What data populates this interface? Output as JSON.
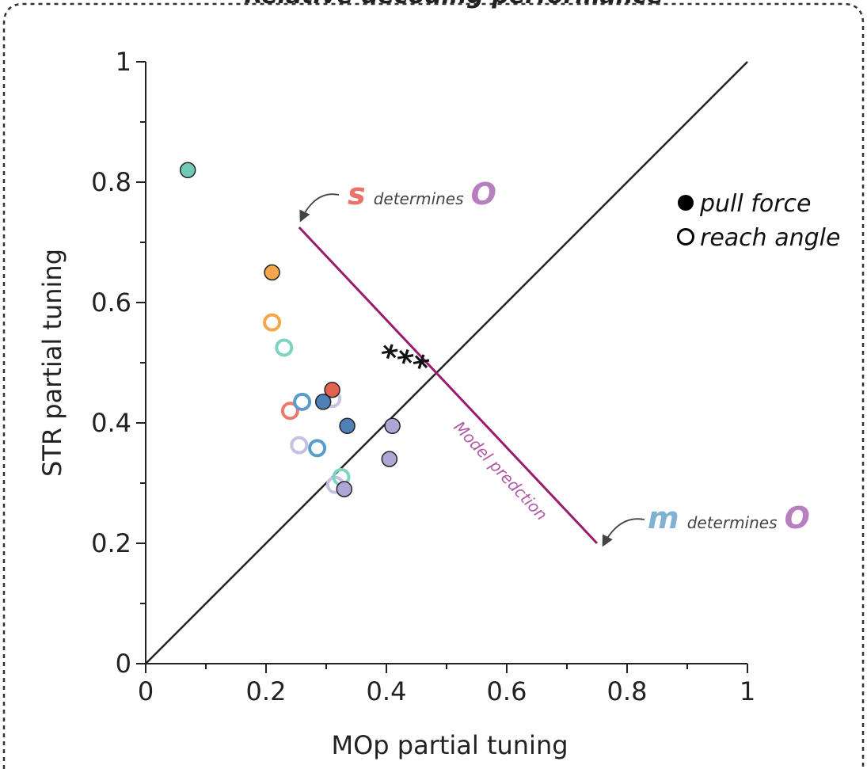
{
  "chart_data": {
    "type": "scatter",
    "title": "Relative decoding performance",
    "xlabel": "MOp partial tuning",
    "ylabel": "STR partial tuning",
    "xlim": [
      0,
      1
    ],
    "ylim": [
      0,
      1
    ],
    "x_ticks": [
      "0",
      "0.2",
      "0.4",
      "0.6",
      "0.8",
      "1"
    ],
    "y_ticks": [
      "0",
      "0.2",
      "0.4",
      "0.6",
      "0.8",
      "1"
    ],
    "x_tick_values": [
      0,
      0.2,
      0.4,
      0.6,
      0.8,
      1
    ],
    "y_tick_values": [
      0,
      0.2,
      0.4,
      0.6,
      0.8,
      1
    ],
    "legend": {
      "placement": "top-right",
      "filled_label": "pull force",
      "open_label": "reach angle"
    },
    "identity_line": {
      "from": [
        0,
        0
      ],
      "to": [
        1,
        1
      ]
    },
    "model_line": {
      "from": [
        0.255,
        0.725
      ],
      "to": [
        0.75,
        0.2
      ],
      "color": "#9b1b6e"
    },
    "model_label": "Model predction",
    "significance": "***",
    "annotations": {
      "top": {
        "letter": "s",
        "text": "determines",
        "target": "O",
        "letter_color": "#e8736a",
        "target_color": "#b77fc0"
      },
      "bottom": {
        "letter": "m",
        "text": "determines",
        "target": "O",
        "letter_color": "#7fb1d3",
        "target_color": "#b77fc0"
      }
    },
    "series": [
      {
        "name": "pull force",
        "filled": true,
        "points": [
          {
            "x": 0.07,
            "y": 0.82,
            "color": "#6fcbb3"
          },
          {
            "x": 0.21,
            "y": 0.65,
            "color": "#f6a64a"
          },
          {
            "x": 0.31,
            "y": 0.455,
            "color": "#e3624f"
          },
          {
            "x": 0.295,
            "y": 0.435,
            "color": "#4f81b8"
          },
          {
            "x": 0.335,
            "y": 0.395,
            "color": "#4f81b8"
          },
          {
            "x": 0.41,
            "y": 0.395,
            "color": "#b0a6d6"
          },
          {
            "x": 0.405,
            "y": 0.34,
            "color": "#b0a6d6"
          },
          {
            "x": 0.33,
            "y": 0.29,
            "color": "#b0a6d6"
          }
        ]
      },
      {
        "name": "reach angle",
        "filled": false,
        "points": [
          {
            "x": 0.21,
            "y": 0.567,
            "color": "#f6a64a"
          },
          {
            "x": 0.23,
            "y": 0.525,
            "color": "#7fd4c0"
          },
          {
            "x": 0.24,
            "y": 0.42,
            "color": "#ec7a6c"
          },
          {
            "x": 0.26,
            "y": 0.435,
            "color": "#5b9ccf"
          },
          {
            "x": 0.31,
            "y": 0.44,
            "color": "#c7c0e2"
          },
          {
            "x": 0.255,
            "y": 0.363,
            "color": "#c7c0e2"
          },
          {
            "x": 0.285,
            "y": 0.358,
            "color": "#5b9ccf"
          },
          {
            "x": 0.315,
            "y": 0.297,
            "color": "#c7c0e2"
          },
          {
            "x": 0.325,
            "y": 0.31,
            "color": "#7fd4c0"
          }
        ]
      }
    ]
  }
}
